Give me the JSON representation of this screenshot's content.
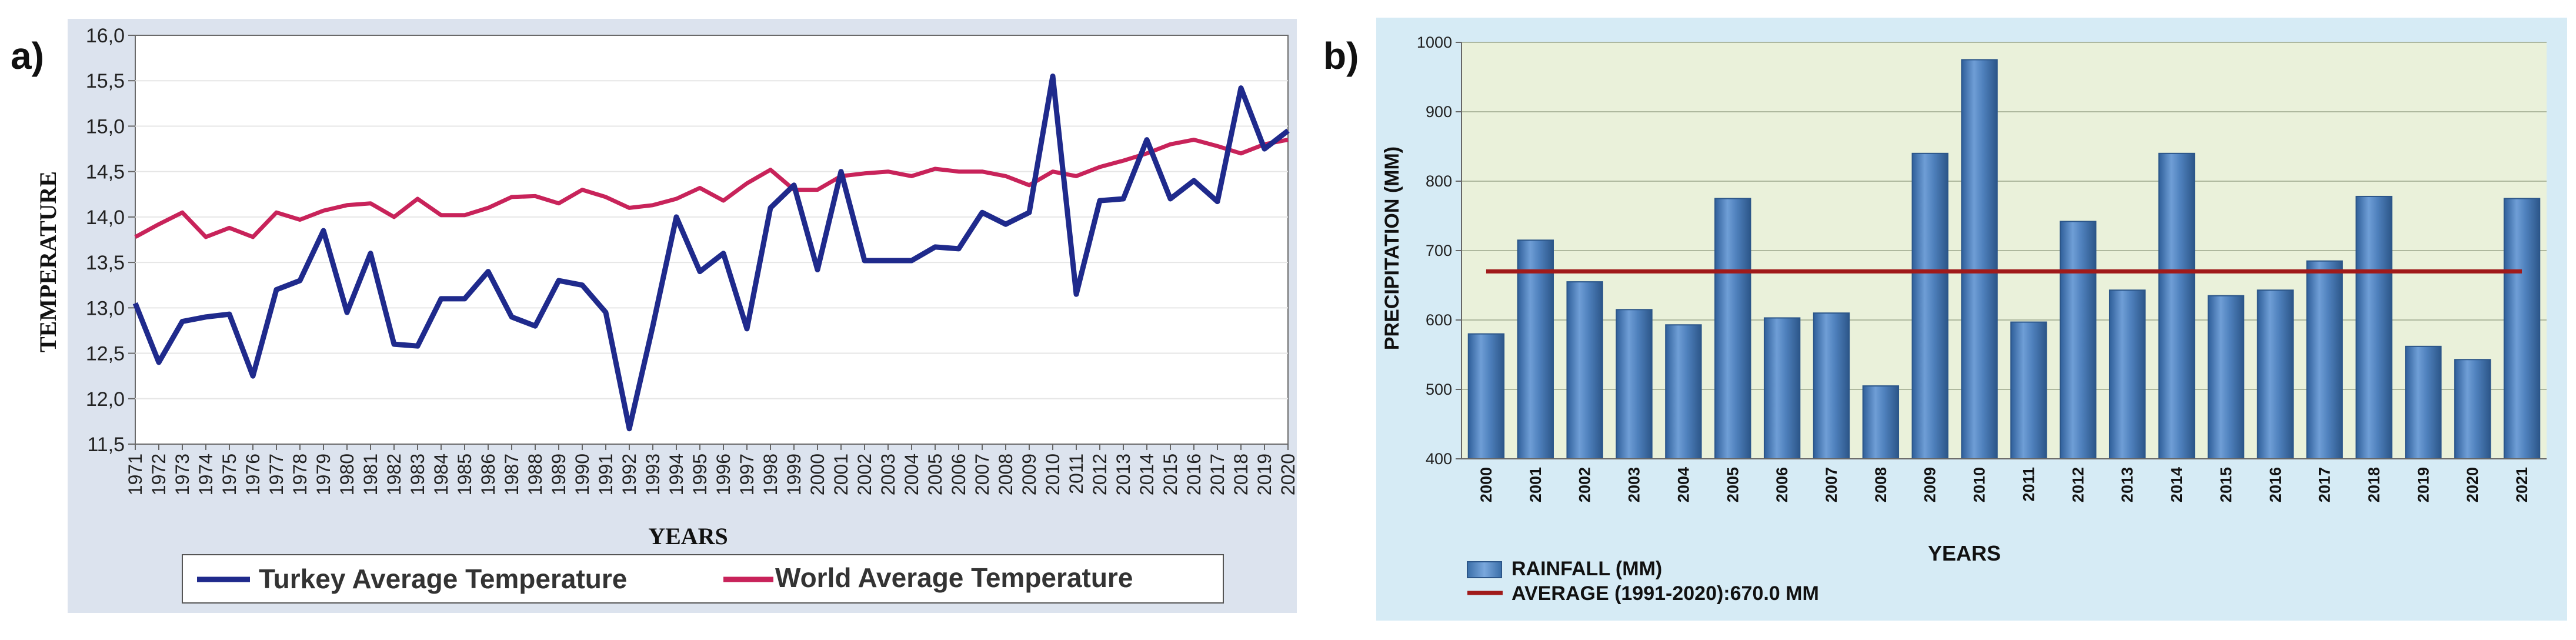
{
  "panels": {
    "a_label": "a)",
    "b_label": "b)"
  },
  "chart_data": [
    {
      "type": "line",
      "title": "",
      "xlabel": "YEARS",
      "ylabel": "TEMPERATURE",
      "ylim": [
        11.5,
        16.0
      ],
      "yticks": [
        "11,5",
        "12,0",
        "12,5",
        "13,0",
        "13,5",
        "14,0",
        "14,5",
        "15,0",
        "15,5",
        "16,0"
      ],
      "x": [
        "1971",
        "1972",
        "1973",
        "1974",
        "1975",
        "1976",
        "1977",
        "1978",
        "1979",
        "1980",
        "1981",
        "1982",
        "1983",
        "1984",
        "1985",
        "1986",
        "1987",
        "1988",
        "1989",
        "1990",
        "1991",
        "1992",
        "1993",
        "1994",
        "1995",
        "1996",
        "1997",
        "1998",
        "1999",
        "2000",
        "2001",
        "2002",
        "2003",
        "2004",
        "2005",
        "2006",
        "2007",
        "2008",
        "2009",
        "2010",
        "2011",
        "2012",
        "2013",
        "2014",
        "2015",
        "2016",
        "2017",
        "2018",
        "2019",
        "2020"
      ],
      "grid": true,
      "legend_position": "bottom",
      "series": [
        {
          "name": "Turkey Average Temperature",
          "color": "#1f2a8c",
          "values": [
            13.05,
            12.4,
            12.85,
            12.9,
            12.93,
            12.25,
            13.2,
            13.3,
            13.85,
            12.95,
            13.6,
            12.6,
            12.58,
            13.1,
            13.1,
            13.4,
            12.9,
            12.8,
            13.3,
            13.25,
            12.95,
            11.67,
            12.8,
            14.0,
            13.4,
            13.6,
            12.77,
            14.1,
            14.35,
            13.42,
            14.5,
            13.52,
            13.52,
            13.52,
            13.67,
            13.65,
            14.05,
            13.92,
            14.05,
            15.55,
            13.15,
            14.18,
            14.2,
            14.85,
            14.2,
            14.4,
            14.17,
            15.42,
            14.75,
            14.95
          ]
        },
        {
          "name": "World Average Temperature",
          "color": "#c8235a",
          "values": [
            13.78,
            13.92,
            14.05,
            13.78,
            13.88,
            13.78,
            14.05,
            13.97,
            14.07,
            14.13,
            14.15,
            14.0,
            14.2,
            14.02,
            14.02,
            14.1,
            14.22,
            14.23,
            14.15,
            14.3,
            14.22,
            14.1,
            14.13,
            14.2,
            14.32,
            14.18,
            14.37,
            14.52,
            14.3,
            14.3,
            14.45,
            14.48,
            14.5,
            14.45,
            14.53,
            14.5,
            14.5,
            14.45,
            14.35,
            14.5,
            14.45,
            14.55,
            14.62,
            14.7,
            14.8,
            14.85,
            14.78,
            14.7,
            14.8,
            14.85
          ]
        }
      ]
    },
    {
      "type": "bar",
      "title": "",
      "xlabel": "YEARS",
      "ylabel": "PRECIPITATION (MM)",
      "ylim": [
        400,
        1000
      ],
      "yticks": [
        "400",
        "500",
        "600",
        "700",
        "800",
        "900",
        "1000"
      ],
      "categories": [
        "2000",
        "2001",
        "2002",
        "2003",
        "2004",
        "2005",
        "2006",
        "2007",
        "2008",
        "2009",
        "2010",
        "2011",
        "2012",
        "2013",
        "2014",
        "2015",
        "2016",
        "2017",
        "2018",
        "2019",
        "2020",
        "2021"
      ],
      "grid": true,
      "legend_position": "bottom-left",
      "series": [
        {
          "name": "RAINFALL (MM)",
          "color": "#4f81bd",
          "values": [
            580,
            715,
            655,
            615,
            593,
            775,
            603,
            610,
            505,
            840,
            975,
            597,
            742,
            643,
            840,
            635,
            643,
            685,
            778,
            562,
            543,
            775
          ]
        },
        {
          "name": "AVERAGE (1991-2020):670.0 MM",
          "color": "#a01a1a",
          "values": [
            670,
            670,
            670,
            670,
            670,
            670,
            670,
            670,
            670,
            670,
            670,
            670,
            670,
            670,
            670,
            670,
            670,
            670,
            670,
            670,
            670,
            670
          ]
        }
      ]
    }
  ]
}
